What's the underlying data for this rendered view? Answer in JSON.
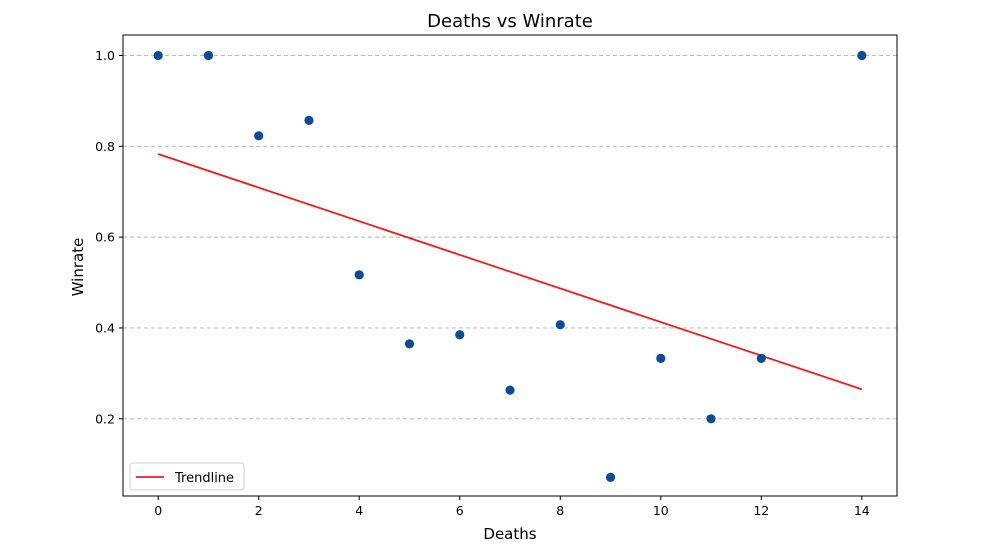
{
  "chart_data": {
    "type": "scatter",
    "title": "Deaths vs Winrate",
    "xlabel": "Deaths",
    "ylabel": "Winrate",
    "xlim": [
      -0.7,
      14.7
    ],
    "ylim": [
      0.03,
      1.045
    ],
    "x_ticks": [
      0,
      2,
      4,
      6,
      8,
      10,
      12,
      14
    ],
    "y_ticks": [
      0.2,
      0.4,
      0.6,
      0.8,
      1.0
    ],
    "y_tick_labels": [
      "0.2",
      "0.4",
      "0.6",
      "0.8",
      "1.0"
    ],
    "grid": "horizontal-dashed",
    "legend_position": "bottom-left",
    "points": [
      {
        "x": 0,
        "y": 1.0
      },
      {
        "x": 1,
        "y": 1.0
      },
      {
        "x": 2,
        "y": 0.823
      },
      {
        "x": 3,
        "y": 0.857
      },
      {
        "x": 4,
        "y": 0.517
      },
      {
        "x": 5,
        "y": 0.365
      },
      {
        "x": 6,
        "y": 0.385
      },
      {
        "x": 7,
        "y": 0.263
      },
      {
        "x": 8,
        "y": 0.407
      },
      {
        "x": 9,
        "y": 0.071
      },
      {
        "x": 10,
        "y": 0.333
      },
      {
        "x": 11,
        "y": 0.2
      },
      {
        "x": 12,
        "y": 0.333
      },
      {
        "x": 14,
        "y": 1.0
      }
    ],
    "series": [
      {
        "name": "Trendline",
        "type": "line",
        "x": [
          0,
          14
        ],
        "y": [
          0.783,
          0.265
        ],
        "color": "#ee1c1c"
      }
    ],
    "colors": {
      "points": "#0d4a99",
      "trendline": "#ee1c1c",
      "grid": "#b0b0b0"
    }
  }
}
